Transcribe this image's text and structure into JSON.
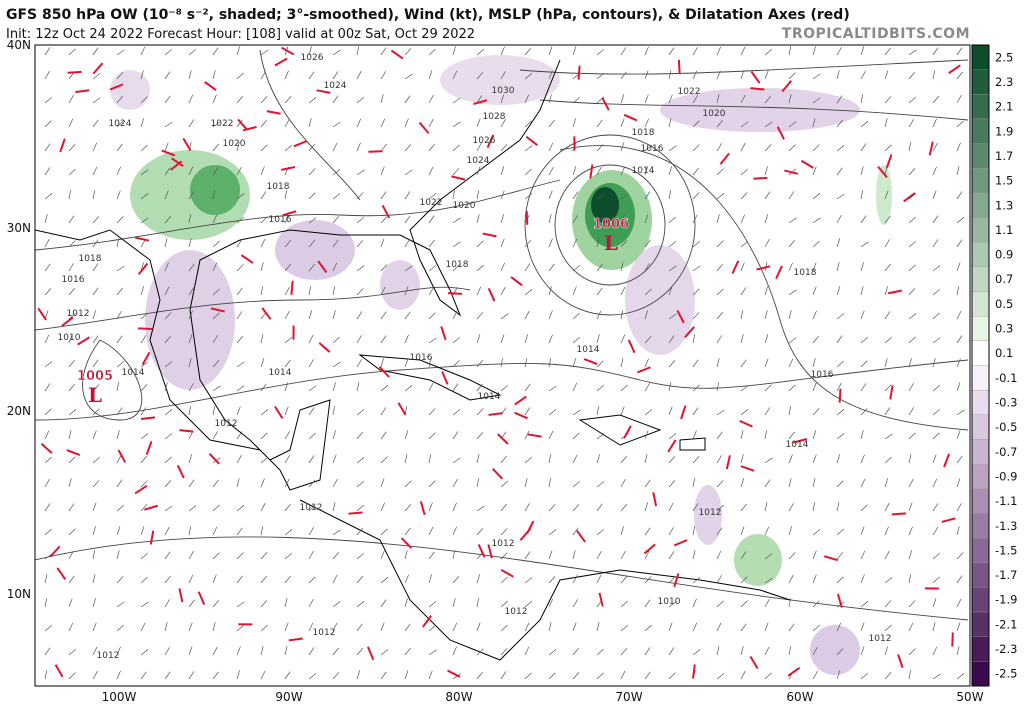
{
  "header": {
    "title": "GFS 850 hPa OW (10⁻⁸ s⁻², shaded; 3°-smoothed), Wind (kt), MSLP (hPa, contours), & Dilatation Axes (red)",
    "init": "Init: 12z Oct 24 2022   Forecast Hour: [108]   valid at 00z Sat, Oct 29 2022",
    "source": "TROPICALTIDBITS.COM"
  },
  "axes": {
    "lat": [
      "40N",
      "30N",
      "20N",
      "10N"
    ],
    "lon": [
      "100W",
      "90W",
      "80W",
      "70W",
      "60W",
      "50W"
    ]
  },
  "contours": [
    "1026",
    "1024",
    "1030",
    "1022",
    "1028",
    "1020",
    "1024",
    "1022",
    "1018",
    "1026",
    "1020",
    "1016",
    "1024",
    "1014",
    "1018",
    "1022",
    "1020",
    "1016",
    "1018",
    "1018",
    "1016",
    "1018",
    "1012",
    "1010",
    "1016",
    "1014",
    "1014",
    "1014",
    "1016",
    "1014",
    "1012",
    "1014",
    "1012",
    "1012",
    "1012",
    "1012",
    "1010",
    "1012",
    "1012",
    "1012"
  ],
  "lows": [
    {
      "pressure": "1006",
      "symbol": "L"
    },
    {
      "pressure": "1005",
      "symbol": "L"
    }
  ],
  "colorbar": {
    "ticks": [
      "2.5",
      "2.3",
      "2.1",
      "1.9",
      "1.7",
      "1.5",
      "1.3",
      "1.1",
      "0.9",
      "0.7",
      "0.5",
      "0.3",
      "0.1",
      "-0.1",
      "-0.3",
      "-0.5",
      "-0.7",
      "-0.9",
      "-1.1",
      "-1.3",
      "-1.5",
      "-1.7",
      "-1.9",
      "-2.1",
      "-2.3",
      "-2.5"
    ]
  }
}
